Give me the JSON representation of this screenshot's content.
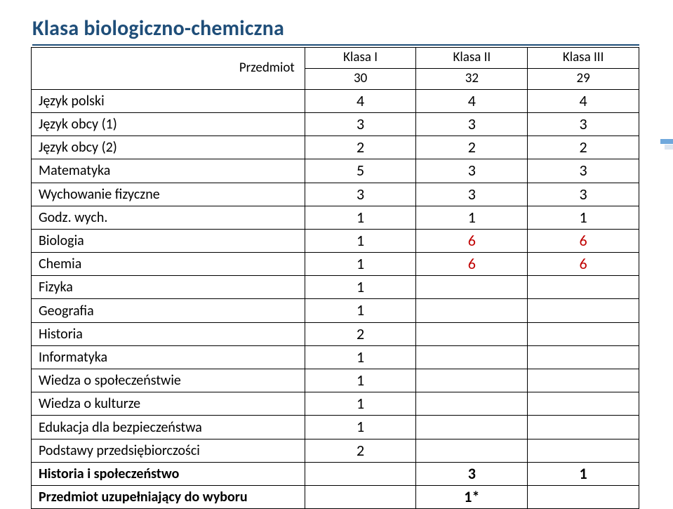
{
  "title": {
    "text": "Klasa biologiczno-chemiczna",
    "color": "#1f4e79"
  },
  "headers": {
    "subjectLabel": "Przedmiot",
    "k1": "Klasa I",
    "k2": "Klasa II",
    "k3": "Klasa III",
    "n1": "30",
    "n2": "32",
    "n3": "29"
  },
  "rows": [
    {
      "label": "Język polski",
      "v": [
        "4",
        "4",
        "4"
      ],
      "colors": [
        "#000",
        "#000",
        "#000"
      ],
      "bold": false
    },
    {
      "label": "Język obcy (1)",
      "v": [
        "3",
        "3",
        "3"
      ],
      "colors": [
        "#000",
        "#000",
        "#000"
      ],
      "bold": false
    },
    {
      "label": "Język obcy (2)",
      "v": [
        "2",
        "2",
        "2"
      ],
      "colors": [
        "#000",
        "#000",
        "#000"
      ],
      "bold": false
    },
    {
      "label": "Matematyka",
      "v": [
        "5",
        "3",
        "3"
      ],
      "colors": [
        "#000",
        "#000",
        "#000"
      ],
      "bold": false
    },
    {
      "label": "Wychowanie fizyczne",
      "v": [
        "3",
        "3",
        "3"
      ],
      "colors": [
        "#000",
        "#000",
        "#000"
      ],
      "bold": false
    },
    {
      "label": "Godz. wych.",
      "v": [
        "1",
        "1",
        "1"
      ],
      "colors": [
        "#000",
        "#000",
        "#000"
      ],
      "bold": false
    },
    {
      "label": "Biologia",
      "v": [
        "1",
        "6",
        "6"
      ],
      "colors": [
        "#000",
        "#c00000",
        "#c00000"
      ],
      "bold": false
    },
    {
      "label": "Chemia",
      "v": [
        "1",
        "6",
        "6"
      ],
      "colors": [
        "#000",
        "#c00000",
        "#c00000"
      ],
      "bold": false
    },
    {
      "label": "Fizyka",
      "v": [
        "1",
        "",
        ""
      ],
      "colors": [
        "#000",
        "#000",
        "#000"
      ],
      "bold": false
    },
    {
      "label": "Geografia",
      "v": [
        "1",
        "",
        ""
      ],
      "colors": [
        "#000",
        "#000",
        "#000"
      ],
      "bold": false
    },
    {
      "label": "Historia",
      "v": [
        "2",
        "",
        ""
      ],
      "colors": [
        "#000",
        "#000",
        "#000"
      ],
      "bold": false
    },
    {
      "label": "Informatyka",
      "v": [
        "1",
        "",
        ""
      ],
      "colors": [
        "#000",
        "#000",
        "#000"
      ],
      "bold": false
    },
    {
      "label": "Wiedza o społeczeństwie",
      "v": [
        "1",
        "",
        ""
      ],
      "colors": [
        "#000",
        "#000",
        "#000"
      ],
      "bold": false
    },
    {
      "label": "Wiedza o kulturze",
      "v": [
        "1",
        "",
        ""
      ],
      "colors": [
        "#000",
        "#000",
        "#000"
      ],
      "bold": false
    },
    {
      "label": "Edukacja dla bezpieczeństwa",
      "v": [
        "1",
        "",
        ""
      ],
      "colors": [
        "#000",
        "#000",
        "#000"
      ],
      "bold": false
    },
    {
      "label": "Podstawy przedsiębiorczości",
      "v": [
        "2",
        "",
        ""
      ],
      "colors": [
        "#000",
        "#000",
        "#000"
      ],
      "bold": false
    },
    {
      "label": "Historia i społeczeństwo",
      "v": [
        "",
        "3",
        "1"
      ],
      "colors": [
        "#000",
        "#000",
        "#000"
      ],
      "bold": true
    },
    {
      "label": "Przedmiot uzupełniający do wyboru",
      "v": [
        "",
        "1*",
        ""
      ],
      "colors": [
        "#000",
        "#000",
        "#000"
      ],
      "bold": true
    }
  ],
  "style": {
    "titleUnderlineColor": "#1f4e79",
    "borderColor": "#000000",
    "textColor": "#000000"
  }
}
